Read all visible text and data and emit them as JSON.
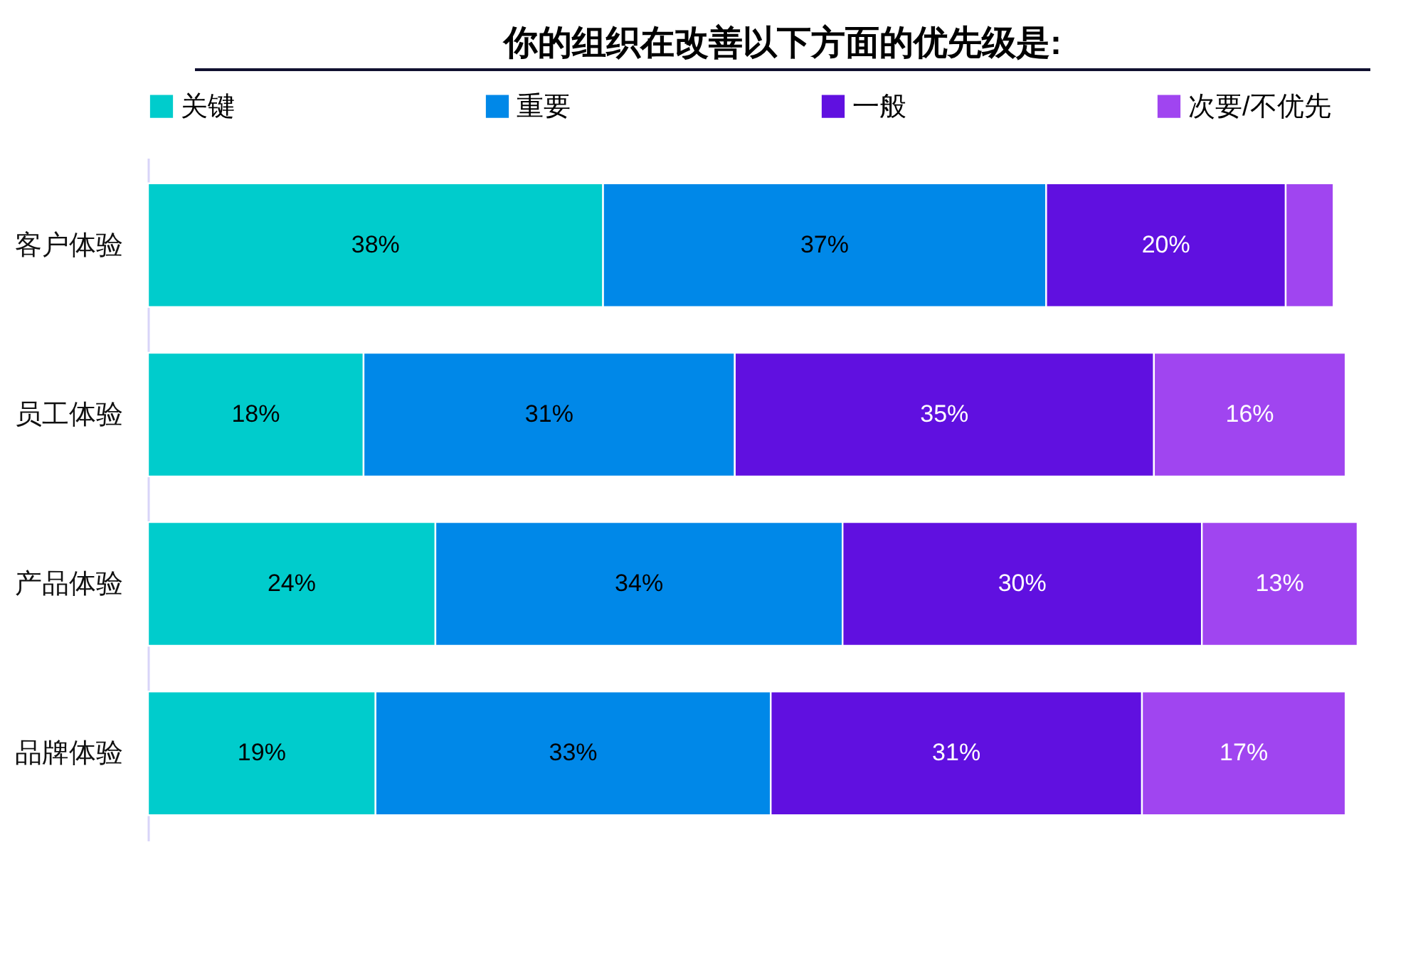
{
  "chart_data": {
    "type": "bar",
    "orientation": "horizontal",
    "stacked": true,
    "title": "你的组织在改善以下方面的优先级是:",
    "categories": [
      "客户体验",
      "员工体验",
      "产品体验",
      "品牌体验"
    ],
    "legend": "top",
    "series": [
      {
        "name": "关键",
        "color": "#00cccc",
        "values": [
          38,
          18,
          24,
          19
        ],
        "value_labels": [
          "38%",
          "18%",
          "24%",
          "19%"
        ]
      },
      {
        "name": "重要",
        "color": "#0088e8",
        "values": [
          37,
          31,
          34,
          33
        ],
        "value_labels": [
          "37%",
          "31%",
          "34%",
          "33%"
        ]
      },
      {
        "name": "一般",
        "color": "#6010e0",
        "values": [
          20,
          35,
          30,
          31
        ],
        "value_labels": [
          "20%",
          "35%",
          "30%",
          "31%"
        ]
      },
      {
        "name": "次要/不优先",
        "color": "#a045f0",
        "values": [
          4,
          16,
          13,
          17
        ],
        "value_labels": [
          null,
          "16%",
          "13%",
          "17%"
        ]
      }
    ]
  }
}
